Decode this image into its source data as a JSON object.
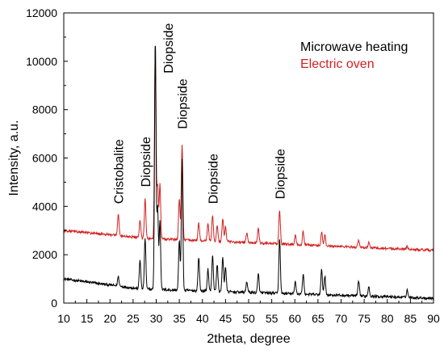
{
  "chart_data": {
    "type": "line",
    "xlabel": "2theta, degree",
    "ylabel": "Intensity, a.u.",
    "xlim": [
      10,
      90
    ],
    "ylim": [
      0,
      12000
    ],
    "xticks": [
      10,
      15,
      20,
      25,
      30,
      35,
      40,
      45,
      50,
      55,
      60,
      65,
      70,
      75,
      80,
      85,
      90
    ],
    "yticks": [
      0,
      2000,
      4000,
      6000,
      8000,
      10000,
      12000
    ],
    "legend_position": "top-right",
    "grid": false,
    "series": [
      {
        "name": "Microwave heating",
        "color": "#000000",
        "peaks": [
          {
            "x": 21.8,
            "y": 1100
          },
          {
            "x": 26.5,
            "y": 1800
          },
          {
            "x": 27.6,
            "y": 2700
          },
          {
            "x": 29.8,
            "y": 10900
          },
          {
            "x": 30.3,
            "y": 4000
          },
          {
            "x": 30.8,
            "y": 3400
          },
          {
            "x": 35.0,
            "y": 2600
          },
          {
            "x": 35.6,
            "y": 5950
          },
          {
            "x": 39.2,
            "y": 1900
          },
          {
            "x": 41.2,
            "y": 1400
          },
          {
            "x": 42.2,
            "y": 2000
          },
          {
            "x": 43.2,
            "y": 1600
          },
          {
            "x": 44.4,
            "y": 1900
          },
          {
            "x": 45.0,
            "y": 1500
          },
          {
            "x": 49.6,
            "y": 900
          },
          {
            "x": 52.1,
            "y": 1200
          },
          {
            "x": 56.7,
            "y": 2700
          },
          {
            "x": 60.1,
            "y": 900
          },
          {
            "x": 61.8,
            "y": 1200
          },
          {
            "x": 65.8,
            "y": 1400
          },
          {
            "x": 66.5,
            "y": 1100
          },
          {
            "x": 73.8,
            "y": 900
          },
          {
            "x": 76.0,
            "y": 700
          },
          {
            "x": 84.3,
            "y": 550
          }
        ]
      },
      {
        "name": "Electric oven",
        "color": "#d42020",
        "peaks": [
          {
            "x": 21.8,
            "y": 3700
          },
          {
            "x": 26.5,
            "y": 3400
          },
          {
            "x": 27.6,
            "y": 4300
          },
          {
            "x": 29.8,
            "y": 10750
          },
          {
            "x": 30.3,
            "y": 4900
          },
          {
            "x": 30.8,
            "y": 4900
          },
          {
            "x": 35.0,
            "y": 4300
          },
          {
            "x": 35.6,
            "y": 6550
          },
          {
            "x": 39.2,
            "y": 3300
          },
          {
            "x": 41.2,
            "y": 3300
          },
          {
            "x": 42.2,
            "y": 3650
          },
          {
            "x": 43.2,
            "y": 3200
          },
          {
            "x": 44.4,
            "y": 3500
          },
          {
            "x": 45.0,
            "y": 3200
          },
          {
            "x": 49.6,
            "y": 2900
          },
          {
            "x": 52.1,
            "y": 3100
          },
          {
            "x": 56.7,
            "y": 3850
          },
          {
            "x": 60.1,
            "y": 2800
          },
          {
            "x": 61.8,
            "y": 2950
          },
          {
            "x": 65.8,
            "y": 2950
          },
          {
            "x": 66.5,
            "y": 2800
          },
          {
            "x": 73.8,
            "y": 2600
          },
          {
            "x": 76.0,
            "y": 2500
          },
          {
            "x": 84.3,
            "y": 2350
          }
        ]
      }
    ],
    "annotations": [
      {
        "text": "Cristobalite",
        "x": 21.8,
        "y": 4100
      },
      {
        "text": "Diopside",
        "x": 27.6,
        "y": 4800
      },
      {
        "text": "Diopside",
        "x": 32.5,
        "y": 9500
      },
      {
        "text": "Diopside",
        "x": 35.6,
        "y": 7200
      },
      {
        "text": "Diopside",
        "x": 42.2,
        "y": 4100
      },
      {
        "text": "Diopside",
        "x": 56.7,
        "y": 4300
      }
    ]
  }
}
